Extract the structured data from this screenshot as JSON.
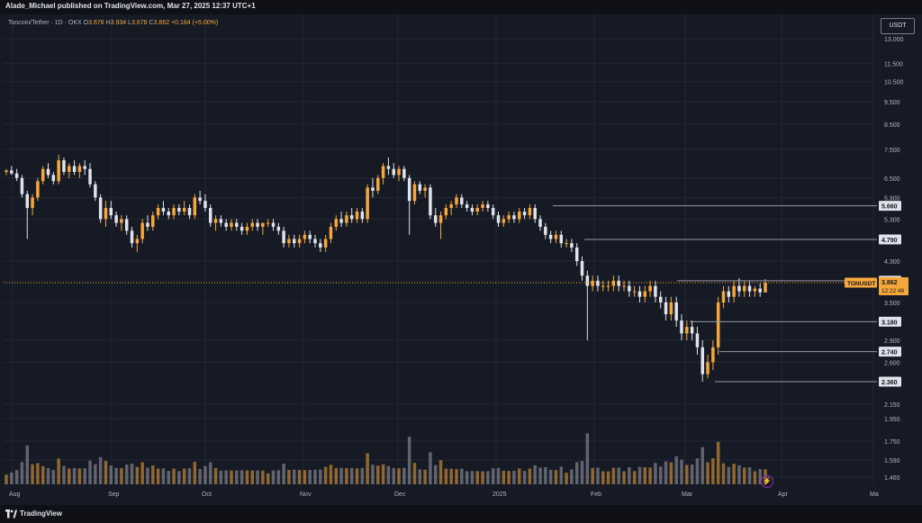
{
  "header": {
    "publisher": "Alade_Michael published on TradingView.com, Mar 27, 2025 12:37 UTC+1"
  },
  "legend": {
    "symbol": "Toncoin/Tether · 1D · OKX",
    "o_label": "O",
    "o": "3.678",
    "h_label": "H",
    "h": "3.934",
    "l_label": "L",
    "l": "3.678",
    "c_label": "C",
    "c": "3.862",
    "change": "+0.184 (+5.00%)"
  },
  "currency_button": "USDT",
  "footer": {
    "brand": "TradingView"
  },
  "colors": {
    "up": "#f6a73b",
    "down": "#e0e3eb",
    "background": "#161a25",
    "grid": "#232733",
    "level_line": "#9598a1",
    "price_tag": "#f6a73b"
  },
  "chart_data": {
    "type": "candlestick",
    "y_axis": {
      "ticks": [
        "13.000",
        "11.500",
        "10.500",
        "9.500",
        "8.500",
        "7.500",
        "6.500",
        "5.900",
        "5.300",
        "4.300",
        "3.500",
        "2.900",
        "2.600",
        "2.150",
        "1.950",
        "1.750",
        "1.590",
        "1.460"
      ],
      "scale": "log"
    },
    "x_axis": {
      "ticks": [
        "Aug",
        "Sep",
        "Oct",
        "Nov",
        "Dec",
        "2025",
        "Feb",
        "Mar",
        "Apr",
        "Ma"
      ]
    },
    "levels": [
      "5.660",
      "4.790",
      "3.900",
      "3.180",
      "2.740",
      "2.360"
    ],
    "current": {
      "symbol": "TONUSDT",
      "price": "3.862",
      "countdown": "12:22:46"
    },
    "candles": [
      [
        0,
        6.7,
        6.8,
        6.6,
        6.75
      ],
      [
        1,
        6.75,
        6.9,
        6.6,
        6.65
      ],
      [
        2,
        6.65,
        6.8,
        6.4,
        6.5
      ],
      [
        3,
        6.5,
        6.6,
        5.9,
        6.0
      ],
      [
        4,
        6.0,
        6.1,
        4.8,
        5.6
      ],
      [
        5,
        5.6,
        6.0,
        5.4,
        5.9
      ],
      [
        6,
        5.9,
        6.5,
        5.8,
        6.4
      ],
      [
        7,
        6.4,
        6.9,
        6.3,
        6.8
      ],
      [
        8,
        6.8,
        7.0,
        6.5,
        6.6
      ],
      [
        9,
        6.6,
        6.7,
        6.3,
        6.4
      ],
      [
        10,
        6.4,
        7.3,
        6.3,
        7.1
      ],
      [
        11,
        7.1,
        7.2,
        6.6,
        6.7
      ],
      [
        12,
        6.7,
        7.0,
        6.5,
        6.9
      ],
      [
        13,
        6.9,
        7.1,
        6.6,
        6.7
      ],
      [
        14,
        6.7,
        7.0,
        6.5,
        6.9
      ],
      [
        15,
        6.9,
        7.1,
        6.6,
        6.8
      ],
      [
        16,
        6.8,
        7.0,
        6.2,
        6.3
      ],
      [
        17,
        6.3,
        6.4,
        5.8,
        5.9
      ],
      [
        18,
        5.9,
        6.0,
        5.2,
        5.3
      ],
      [
        19,
        5.3,
        5.8,
        5.1,
        5.6
      ],
      [
        20,
        5.6,
        5.8,
        5.3,
        5.4
      ],
      [
        21,
        5.4,
        5.5,
        5.1,
        5.2
      ],
      [
        22,
        5.2,
        5.4,
        5.0,
        5.3
      ],
      [
        23,
        5.3,
        5.4,
        4.9,
        5.0
      ],
      [
        24,
        5.0,
        5.1,
        4.6,
        4.7
      ],
      [
        25,
        4.7,
        4.9,
        4.5,
        4.8
      ],
      [
        26,
        4.8,
        5.3,
        4.7,
        5.2
      ],
      [
        27,
        5.2,
        5.4,
        5.0,
        5.1
      ],
      [
        28,
        5.1,
        5.5,
        5.0,
        5.4
      ],
      [
        29,
        5.4,
        5.7,
        5.3,
        5.6
      ],
      [
        30,
        5.6,
        5.8,
        5.4,
        5.5
      ],
      [
        31,
        5.5,
        5.6,
        5.3,
        5.4
      ],
      [
        32,
        5.4,
        5.7,
        5.3,
        5.6
      ],
      [
        33,
        5.6,
        5.7,
        5.4,
        5.5
      ],
      [
        34,
        5.5,
        5.8,
        5.4,
        5.6
      ],
      [
        35,
        5.6,
        5.7,
        5.3,
        5.4
      ],
      [
        36,
        5.4,
        6.0,
        5.3,
        5.9
      ],
      [
        37,
        5.9,
        6.1,
        5.7,
        5.8
      ],
      [
        38,
        5.8,
        6.0,
        5.5,
        5.6
      ],
      [
        39,
        5.6,
        5.7,
        5.1,
        5.2
      ],
      [
        40,
        5.2,
        5.4,
        5.0,
        5.3
      ],
      [
        41,
        5.3,
        5.4,
        5.1,
        5.2
      ],
      [
        42,
        5.2,
        5.3,
        5.0,
        5.1
      ],
      [
        43,
        5.1,
        5.3,
        5.0,
        5.2
      ],
      [
        44,
        5.2,
        5.3,
        5.0,
        5.1
      ],
      [
        45,
        5.1,
        5.2,
        4.9,
        5.0
      ],
      [
        46,
        5.0,
        5.2,
        4.9,
        5.1
      ],
      [
        47,
        5.1,
        5.3,
        5.0,
        5.2
      ],
      [
        48,
        5.2,
        5.3,
        5.0,
        5.1
      ],
      [
        49,
        5.1,
        5.2,
        4.9,
        5.2
      ],
      [
        50,
        5.2,
        5.3,
        5.1,
        5.2
      ],
      [
        51,
        5.2,
        5.3,
        5.0,
        5.1
      ],
      [
        52,
        5.1,
        5.2,
        4.9,
        5.0
      ],
      [
        53,
        5.0,
        5.1,
        4.6,
        4.7
      ],
      [
        54,
        4.7,
        4.9,
        4.6,
        4.8
      ],
      [
        55,
        4.8,
        4.9,
        4.6,
        4.7
      ],
      [
        56,
        4.7,
        4.9,
        4.6,
        4.8
      ],
      [
        57,
        4.8,
        5.0,
        4.7,
        4.9
      ],
      [
        58,
        4.9,
        5.0,
        4.7,
        4.8
      ],
      [
        59,
        4.8,
        4.9,
        4.6,
        4.7
      ],
      [
        60,
        4.7,
        4.8,
        4.5,
        4.6
      ],
      [
        61,
        4.6,
        4.9,
        4.5,
        4.8
      ],
      [
        62,
        4.8,
        5.2,
        4.7,
        5.1
      ],
      [
        63,
        5.1,
        5.4,
        5.0,
        5.3
      ],
      [
        64,
        5.3,
        5.5,
        5.1,
        5.2
      ],
      [
        65,
        5.2,
        5.5,
        5.1,
        5.4
      ],
      [
        66,
        5.4,
        5.6,
        5.2,
        5.3
      ],
      [
        67,
        5.3,
        5.6,
        5.2,
        5.5
      ],
      [
        68,
        5.5,
        5.6,
        5.2,
        5.3
      ],
      [
        69,
        5.3,
        6.3,
        5.2,
        6.2
      ],
      [
        70,
        6.2,
        6.5,
        5.9,
        6.1
      ],
      [
        71,
        6.1,
        6.6,
        6.0,
        6.5
      ],
      [
        72,
        6.5,
        7.0,
        6.3,
        6.9
      ],
      [
        73,
        6.9,
        7.2,
        6.6,
        6.8
      ],
      [
        74,
        6.8,
        7.0,
        6.5,
        6.6
      ],
      [
        75,
        6.6,
        6.9,
        6.4,
        6.8
      ],
      [
        76,
        6.8,
        6.9,
        6.4,
        6.5
      ],
      [
        77,
        6.5,
        6.6,
        4.9,
        5.8
      ],
      [
        78,
        5.8,
        6.4,
        5.7,
        6.3
      ],
      [
        79,
        6.3,
        6.4,
        6.0,
        6.1
      ],
      [
        80,
        6.1,
        6.3,
        5.9,
        6.2
      ],
      [
        81,
        6.2,
        6.3,
        5.3,
        5.4
      ],
      [
        82,
        5.4,
        5.6,
        5.1,
        5.2
      ],
      [
        83,
        5.2,
        5.5,
        4.8,
        5.4
      ],
      [
        84,
        5.4,
        5.7,
        5.3,
        5.6
      ],
      [
        85,
        5.6,
        5.8,
        5.4,
        5.7
      ],
      [
        86,
        5.7,
        6.0,
        5.6,
        5.9
      ],
      [
        87,
        5.9,
        6.0,
        5.6,
        5.7
      ],
      [
        88,
        5.7,
        5.8,
        5.5,
        5.6
      ],
      [
        89,
        5.6,
        5.7,
        5.4,
        5.5
      ],
      [
        90,
        5.5,
        5.7,
        5.4,
        5.6
      ],
      [
        91,
        5.6,
        5.8,
        5.5,
        5.7
      ],
      [
        92,
        5.7,
        5.8,
        5.5,
        5.6
      ],
      [
        93,
        5.6,
        5.7,
        5.3,
        5.4
      ],
      [
        94,
        5.4,
        5.5,
        5.1,
        5.2
      ],
      [
        95,
        5.2,
        5.4,
        5.1,
        5.3
      ],
      [
        96,
        5.3,
        5.5,
        5.2,
        5.4
      ],
      [
        97,
        5.4,
        5.5,
        5.2,
        5.3
      ],
      [
        98,
        5.3,
        5.6,
        5.2,
        5.5
      ],
      [
        99,
        5.5,
        5.6,
        5.3,
        5.4
      ],
      [
        100,
        5.4,
        5.7,
        5.3,
        5.6
      ],
      [
        101,
        5.6,
        5.7,
        5.2,
        5.3
      ],
      [
        102,
        5.3,
        5.4,
        5.0,
        5.1
      ],
      [
        103,
        5.1,
        5.2,
        4.8,
        4.9
      ],
      [
        104,
        4.9,
        5.0,
        4.7,
        4.8
      ],
      [
        105,
        4.8,
        5.0,
        4.7,
        4.9
      ],
      [
        106,
        4.9,
        5.0,
        4.6,
        4.7
      ],
      [
        107,
        4.7,
        4.8,
        4.6,
        4.7
      ],
      [
        108,
        4.7,
        4.8,
        4.5,
        4.6
      ],
      [
        109,
        4.6,
        4.7,
        4.2,
        4.3
      ],
      [
        110,
        4.3,
        4.4,
        3.9,
        4.0
      ],
      [
        111,
        4.0,
        4.1,
        2.9,
        3.8
      ],
      [
        112,
        3.8,
        4.0,
        3.7,
        3.9
      ],
      [
        113,
        3.9,
        4.0,
        3.7,
        3.8
      ],
      [
        114,
        3.8,
        3.9,
        3.7,
        3.8
      ],
      [
        115,
        3.8,
        3.9,
        3.7,
        3.8
      ],
      [
        116,
        3.8,
        4.0,
        3.7,
        3.9
      ],
      [
        117,
        3.9,
        4.0,
        3.7,
        3.8
      ],
      [
        118,
        3.8,
        3.9,
        3.7,
        3.8
      ],
      [
        119,
        3.8,
        3.9,
        3.6,
        3.7
      ],
      [
        120,
        3.7,
        3.8,
        3.6,
        3.7
      ],
      [
        121,
        3.7,
        3.8,
        3.5,
        3.6
      ],
      [
        122,
        3.6,
        3.8,
        3.5,
        3.7
      ],
      [
        123,
        3.7,
        3.9,
        3.6,
        3.8
      ],
      [
        124,
        3.8,
        3.9,
        3.5,
        3.6
      ],
      [
        125,
        3.6,
        3.7,
        3.4,
        3.5
      ],
      [
        126,
        3.5,
        3.6,
        3.2,
        3.3
      ],
      [
        127,
        3.3,
        3.6,
        3.2,
        3.5
      ],
      [
        128,
        3.5,
        3.6,
        3.1,
        3.2
      ],
      [
        129,
        3.2,
        3.3,
        2.9,
        3.0
      ],
      [
        130,
        3.0,
        3.2,
        2.9,
        3.1
      ],
      [
        131,
        3.1,
        3.2,
        2.9,
        3.0
      ],
      [
        132,
        3.0,
        3.1,
        2.7,
        2.8
      ],
      [
        133,
        2.8,
        2.9,
        2.36,
        2.45
      ],
      [
        134,
        2.45,
        2.7,
        2.4,
        2.6
      ],
      [
        135,
        2.6,
        2.9,
        2.5,
        2.8
      ],
      [
        136,
        2.8,
        3.6,
        2.7,
        3.5
      ],
      [
        137,
        3.5,
        3.8,
        3.4,
        3.7
      ],
      [
        138,
        3.7,
        3.8,
        3.5,
        3.6
      ],
      [
        139,
        3.6,
        3.9,
        3.5,
        3.8
      ],
      [
        140,
        3.8,
        3.95,
        3.6,
        3.7
      ],
      [
        141,
        3.7,
        3.9,
        3.6,
        3.8
      ],
      [
        142,
        3.8,
        3.9,
        3.6,
        3.7
      ],
      [
        143,
        3.7,
        3.8,
        3.6,
        3.75
      ],
      [
        144,
        3.75,
        3.85,
        3.6,
        3.68
      ],
      [
        145,
        3.678,
        3.934,
        3.678,
        3.862
      ]
    ]
  }
}
